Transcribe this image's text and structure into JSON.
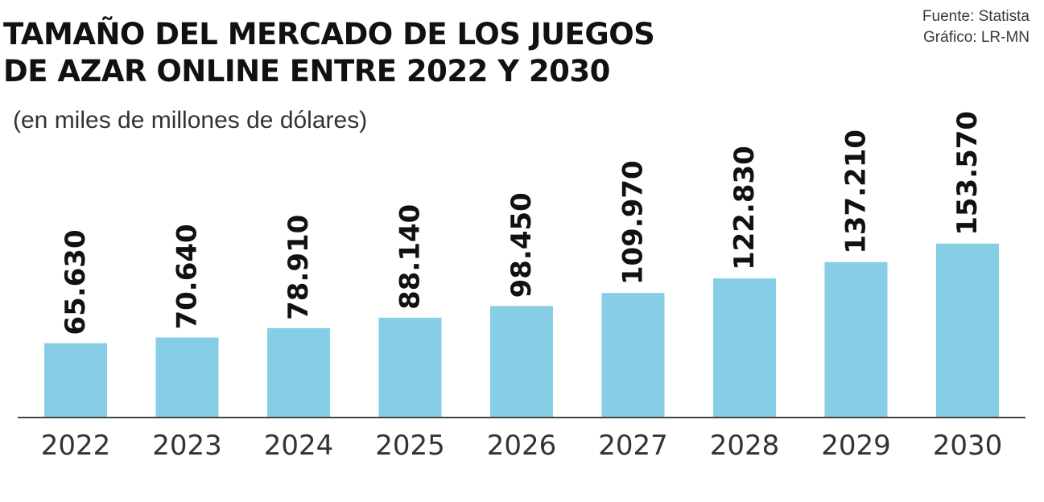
{
  "header": {
    "title_line1": "TAMAÑO DEL MERCADO DE LOS JUEGOS",
    "title_line2": "DE AZAR ONLINE ENTRE 2022 Y 2030",
    "subtitle": "(en miles de millones de dólares)",
    "source": "Fuente: Statista",
    "credit": "Gráfico: LR-MN"
  },
  "colors": {
    "bar": "#86cde6",
    "axis": "#444444"
  },
  "chart_data": {
    "type": "bar",
    "title": "TAMAÑO DEL MERCADO DE LOS JUEGOS DE AZAR ONLINE ENTRE 2022 Y 2030",
    "subtitle": "(en miles de millones de dólares)",
    "xlabel": "",
    "ylabel": "",
    "categories": [
      "2022",
      "2023",
      "2024",
      "2025",
      "2026",
      "2027",
      "2028",
      "2029",
      "2030"
    ],
    "values": [
      65630,
      70640,
      78910,
      88140,
      98450,
      109970,
      122830,
      137210,
      153570
    ],
    "value_labels": [
      "65.630",
      "70.640",
      "78.910",
      "88.140",
      "98.450",
      "109.970",
      "122.830",
      "137.210",
      "153.570"
    ],
    "grid": false,
    "legend": "none"
  }
}
